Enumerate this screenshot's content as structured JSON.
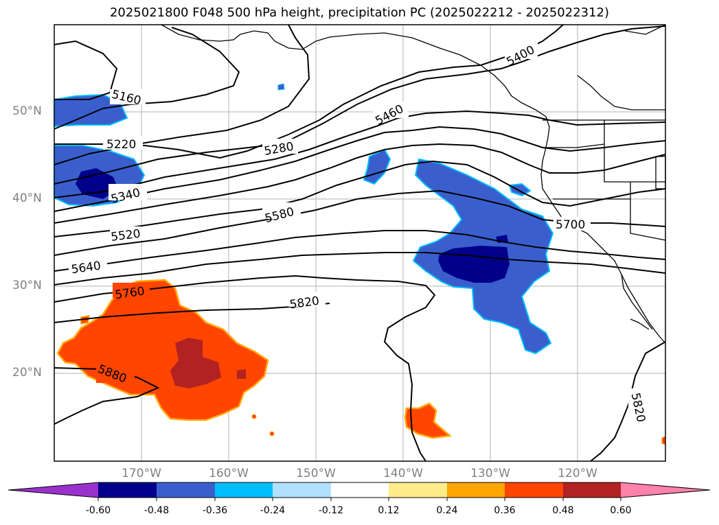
{
  "title": "2025021800 F048 500 hPa height, precipitation PC (2025022212 - 2025022312)",
  "lat_labels": [
    "50°N",
    "40°N",
    "30°N",
    "20°N"
  ],
  "lon_labels": [
    "170°W",
    "160°W",
    "150°W",
    "140°W",
    "130°W",
    "120°W"
  ],
  "contour_labels": [
    "5160",
    "5220",
    "5280",
    "5340",
    "5400",
    "5460",
    "5520",
    "5580",
    "5640",
    "5700",
    "5760",
    "5820",
    "5820",
    "5880"
  ],
  "colorbar": {
    "ticks": [
      "-0.60",
      "-0.48",
      "-0.36",
      "-0.24",
      "-0.12",
      "0.12",
      "0.24",
      "0.36",
      "0.48",
      "0.60"
    ],
    "colors": [
      "#9932cc",
      "#00008b",
      "#3a5fcd",
      "#00bfff",
      "#b0e2ff",
      "#ffffff",
      "#ffec8b",
      "#ffa500",
      "#ff4500",
      "#b22222",
      "#ff82ab"
    ]
  },
  "precip_colors": {
    "neg_strong": "#00008b",
    "neg": "#3a5fcd",
    "neg_edge": "#00bfff",
    "pos": "#ff4500",
    "pos_strong": "#b22222",
    "pos_edge": "#ffa500"
  }
}
